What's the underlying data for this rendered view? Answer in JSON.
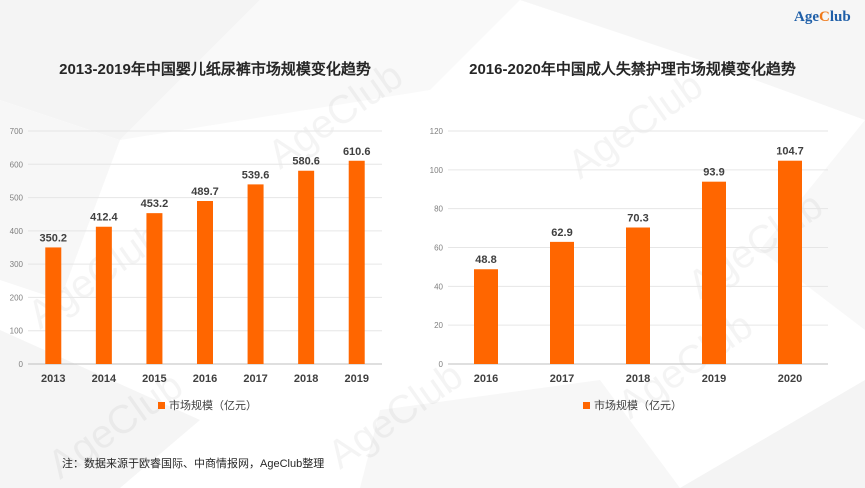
{
  "brand": {
    "logo_main": "Age",
    "logo_accent": "C",
    "logo_rest": "lub",
    "accent_color": "#f07a1a",
    "brand_color": "#1f5fa8"
  },
  "watermark": "AgeClub",
  "bar_color": "#ff6600",
  "chart_data": [
    {
      "type": "bar",
      "title": "2013-2019年中国婴儿纸尿裤市场规模变化趋势",
      "categories": [
        "2013",
        "2014",
        "2015",
        "2016",
        "2017",
        "2018",
        "2019"
      ],
      "values": [
        350.2,
        412.4,
        453.2,
        489.7,
        539.6,
        580.6,
        610.6
      ],
      "value_labels": [
        "350.2",
        "412.4",
        "453.2",
        "489.7",
        "539.6",
        "580.6",
        "610.6"
      ],
      "yticks": [
        "0",
        "100",
        "200",
        "300",
        "400",
        "500",
        "600",
        "700"
      ],
      "ylim": [
        0,
        700
      ],
      "legend": "市场规模（亿元）",
      "xlabel": "",
      "ylabel": ""
    },
    {
      "type": "bar",
      "title": "2016-2020年中国成人失禁护理市场规模变化趋势",
      "categories": [
        "2016",
        "2017",
        "2018",
        "2019",
        "2020"
      ],
      "values": [
        48.8,
        62.9,
        70.3,
        93.9,
        104.7
      ],
      "value_labels": [
        "48.8",
        "62.9",
        "70.3",
        "93.9",
        "104.7"
      ],
      "yticks": [
        "0",
        "20",
        "40",
        "60",
        "80",
        "100",
        "120"
      ],
      "ylim": [
        0,
        120
      ],
      "legend": "市场规模（亿元）",
      "xlabel": "",
      "ylabel": ""
    }
  ],
  "footnote": "注：数据来源于欧睿国际、中商情报网，AgeClub整理"
}
